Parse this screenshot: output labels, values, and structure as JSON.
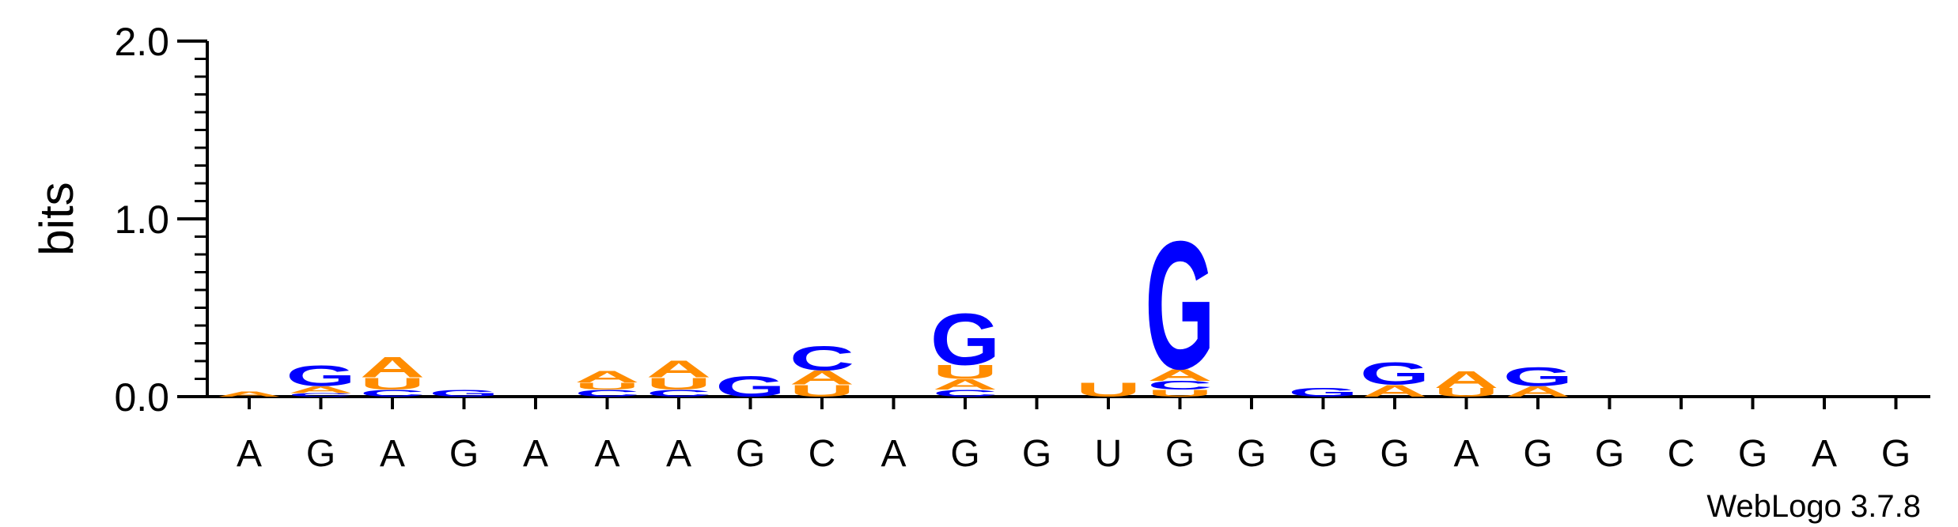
{
  "chart_data": {
    "type": "sequence-logo",
    "title": "",
    "xlabel": "",
    "ylabel": "bits",
    "ylim": [
      0,
      2.0
    ],
    "yticks": [
      "0.0",
      "1.0",
      "2.0"
    ],
    "colors": {
      "A": "#ff8c00",
      "U": "#ff8c00",
      "G": "#0000ff",
      "C": "#0000ff"
    },
    "positions": [
      {
        "label": "A",
        "stack": [
          {
            "letter": "A",
            "bits": 0.03
          }
        ]
      },
      {
        "label": "G",
        "stack": [
          {
            "letter": "C",
            "bits": 0.02
          },
          {
            "letter": "A",
            "bits": 0.04
          },
          {
            "letter": "G",
            "bits": 0.12
          }
        ]
      },
      {
        "label": "A",
        "stack": [
          {
            "letter": "C",
            "bits": 0.04
          },
          {
            "letter": "U",
            "bits": 0.07
          },
          {
            "letter": "A",
            "bits": 0.12
          }
        ]
      },
      {
        "label": "G",
        "stack": [
          {
            "letter": "G",
            "bits": 0.04
          }
        ]
      },
      {
        "label": "A",
        "stack": []
      },
      {
        "label": "A",
        "stack": [
          {
            "letter": "C",
            "bits": 0.04
          },
          {
            "letter": "U",
            "bits": 0.04
          },
          {
            "letter": "A",
            "bits": 0.07
          }
        ]
      },
      {
        "label": "A",
        "stack": [
          {
            "letter": "C",
            "bits": 0.04
          },
          {
            "letter": "U",
            "bits": 0.07
          },
          {
            "letter": "A",
            "bits": 0.1
          }
        ]
      },
      {
        "label": "G",
        "stack": [
          {
            "letter": "G",
            "bits": 0.12
          }
        ]
      },
      {
        "label": "C",
        "stack": [
          {
            "letter": "U",
            "bits": 0.07
          },
          {
            "letter": "A",
            "bits": 0.08
          },
          {
            "letter": "C",
            "bits": 0.14
          }
        ]
      },
      {
        "label": "A",
        "stack": []
      },
      {
        "label": "G",
        "stack": [
          {
            "letter": "C",
            "bits": 0.04
          },
          {
            "letter": "A",
            "bits": 0.06
          },
          {
            "letter": "U",
            "bits": 0.08
          },
          {
            "letter": "G",
            "bits": 0.3
          }
        ]
      },
      {
        "label": "G",
        "stack": []
      },
      {
        "label": "U",
        "stack": [
          {
            "letter": "U",
            "bits": 0.08
          }
        ]
      },
      {
        "label": "G",
        "stack": [
          {
            "letter": "U",
            "bits": 0.04
          },
          {
            "letter": "C",
            "bits": 0.05
          },
          {
            "letter": "A",
            "bits": 0.07
          },
          {
            "letter": "G",
            "bits": 0.75
          }
        ]
      },
      {
        "label": "G",
        "stack": []
      },
      {
        "label": "G",
        "stack": [
          {
            "letter": "G",
            "bits": 0.05
          }
        ]
      },
      {
        "label": "G",
        "stack": [
          {
            "letter": "A",
            "bits": 0.07
          },
          {
            "letter": "G",
            "bits": 0.13
          }
        ]
      },
      {
        "label": "A",
        "stack": [
          {
            "letter": "U",
            "bits": 0.05
          },
          {
            "letter": "A",
            "bits": 0.1
          }
        ]
      },
      {
        "label": "G",
        "stack": [
          {
            "letter": "A",
            "bits": 0.06
          },
          {
            "letter": "G",
            "bits": 0.11
          }
        ]
      },
      {
        "label": "G",
        "stack": []
      },
      {
        "label": "C",
        "stack": []
      },
      {
        "label": "G",
        "stack": []
      },
      {
        "label": "A",
        "stack": []
      },
      {
        "label": "G",
        "stack": []
      }
    ]
  },
  "credit": "WebLogo 3.7.8"
}
